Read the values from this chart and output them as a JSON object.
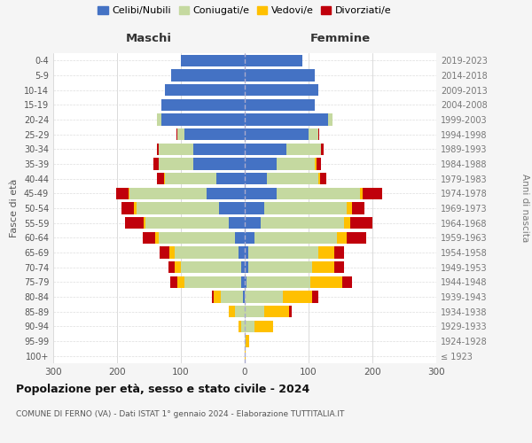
{
  "age_groups": [
    "100+",
    "95-99",
    "90-94",
    "85-89",
    "80-84",
    "75-79",
    "70-74",
    "65-69",
    "60-64",
    "55-59",
    "50-54",
    "45-49",
    "40-44",
    "35-39",
    "30-34",
    "25-29",
    "20-24",
    "15-19",
    "10-14",
    "5-9",
    "0-4"
  ],
  "birth_years": [
    "≤ 1923",
    "1924-1928",
    "1929-1933",
    "1934-1938",
    "1939-1943",
    "1944-1948",
    "1949-1953",
    "1954-1958",
    "1959-1963",
    "1964-1968",
    "1969-1973",
    "1974-1978",
    "1979-1983",
    "1984-1988",
    "1989-1993",
    "1994-1998",
    "1999-2003",
    "2004-2008",
    "2009-2013",
    "2014-2018",
    "2019-2023"
  ],
  "males": {
    "celibi": [
      0,
      0,
      0,
      0,
      3,
      5,
      5,
      10,
      15,
      25,
      40,
      60,
      45,
      80,
      80,
      95,
      130,
      130,
      125,
      115,
      100
    ],
    "coniugati": [
      0,
      0,
      5,
      15,
      35,
      90,
      95,
      100,
      120,
      130,
      130,
      120,
      80,
      55,
      55,
      10,
      8,
      0,
      0,
      0,
      0
    ],
    "vedovi": [
      0,
      0,
      5,
      10,
      10,
      10,
      10,
      8,
      5,
      3,
      3,
      2,
      2,
      0,
      0,
      0,
      0,
      0,
      0,
      0,
      0
    ],
    "divorziati": [
      0,
      0,
      0,
      0,
      3,
      12,
      10,
      15,
      20,
      30,
      20,
      20,
      10,
      8,
      3,
      2,
      0,
      0,
      0,
      0,
      0
    ]
  },
  "females": {
    "nubili": [
      0,
      0,
      0,
      0,
      0,
      3,
      5,
      5,
      15,
      25,
      30,
      50,
      35,
      50,
      65,
      100,
      130,
      110,
      115,
      110,
      90
    ],
    "coniugate": [
      0,
      2,
      15,
      30,
      60,
      100,
      100,
      110,
      130,
      130,
      130,
      130,
      80,
      60,
      55,
      15,
      8,
      0,
      0,
      0,
      0
    ],
    "vedove": [
      1,
      5,
      30,
      40,
      45,
      50,
      35,
      25,
      15,
      10,
      8,
      5,
      3,
      2,
      0,
      0,
      0,
      0,
      0,
      0,
      0
    ],
    "divorziate": [
      0,
      0,
      0,
      3,
      10,
      15,
      15,
      15,
      30,
      35,
      20,
      30,
      10,
      8,
      3,
      2,
      0,
      0,
      0,
      0,
      0
    ]
  },
  "color_celibi": "#4472c4",
  "color_coniugati": "#c5d9a0",
  "color_vedovi": "#ffc000",
  "color_divorziati": "#c0000b",
  "title_main": "Popolazione per età, sesso e stato civile - 2024",
  "title_sub1": "COMUNE DI FERNO (VA) - Dati ISTAT 1° gennaio 2024 - Elaborazione TUTTITALIA.IT",
  "xlabel_left": "Maschi",
  "xlabel_right": "Femmine",
  "ylabel_left": "Fasce di età",
  "ylabel_right": "Anni di nascita",
  "xlim": 300,
  "legend_labels": [
    "Celibi/Nubili",
    "Coniugati/e",
    "Vedovi/e",
    "Divorziati/e"
  ],
  "bg_color": "#f5f5f5",
  "plot_bg_color": "#ffffff"
}
